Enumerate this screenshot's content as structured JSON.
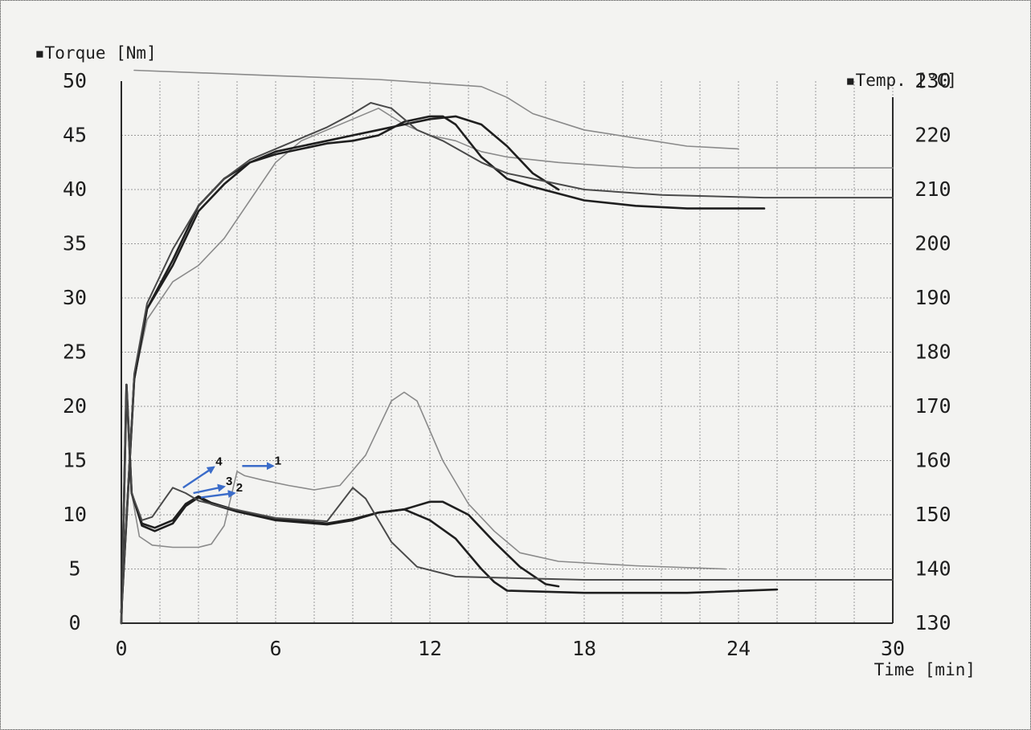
{
  "chart_data": {
    "type": "line",
    "title": "",
    "y_left_label": "▪Torque [Nm]",
    "y_right_label": "▪Temp. [°C]",
    "xlabel": "Time [min]",
    "xlim": [
      0,
      30
    ],
    "ylim_left": [
      0,
      50
    ],
    "ylim_right": [
      130,
      230
    ],
    "x_ticks": [
      "0",
      "6",
      "12",
      "18",
      "24",
      "30"
    ],
    "y_left_ticks": [
      "0",
      "5",
      "10",
      "15",
      "20",
      "25",
      "30",
      "35",
      "40",
      "45",
      "50"
    ],
    "y_right_ticks": [
      "130",
      "140",
      "150",
      "160",
      "170",
      "180",
      "190",
      "200",
      "210",
      "220",
      "230"
    ],
    "grid": true,
    "legend": "none",
    "colors": {
      "dark_curve": "#1f1f1f",
      "medium_curve": "#4a4a4a",
      "light_curve": "#8a8a8a",
      "grid": "#9a9a9a",
      "arrow": "#3b6cc9"
    },
    "series": [
      {
        "name": "1",
        "axis": "torque",
        "shade": "light",
        "points": [
          [
            0,
            0
          ],
          [
            0.2,
            22
          ],
          [
            0.4,
            12
          ],
          [
            0.7,
            8
          ],
          [
            1.2,
            7.2
          ],
          [
            2,
            7
          ],
          [
            3,
            7
          ],
          [
            3.5,
            7.3
          ],
          [
            4,
            9
          ],
          [
            4.3,
            12
          ],
          [
            4.5,
            14
          ],
          [
            4.8,
            13.6
          ],
          [
            5.5,
            13.2
          ],
          [
            6.5,
            12.7
          ],
          [
            7.5,
            12.3
          ],
          [
            8.5,
            12.7
          ],
          [
            9.5,
            15.5
          ],
          [
            10.5,
            20.5
          ],
          [
            11,
            21.3
          ],
          [
            11.5,
            20.5
          ],
          [
            12.5,
            15
          ],
          [
            13.5,
            11
          ],
          [
            14.5,
            8.5
          ],
          [
            15.5,
            6.5
          ],
          [
            17,
            5.7
          ],
          [
            20,
            5.3
          ],
          [
            23.5,
            5
          ]
        ]
      },
      {
        "name": "2",
        "axis": "torque",
        "shade": "dark",
        "points": [
          [
            0,
            0
          ],
          [
            0.2,
            22
          ],
          [
            0.4,
            12
          ],
          [
            0.8,
            9
          ],
          [
            1.3,
            8.5
          ],
          [
            2,
            9.2
          ],
          [
            2.5,
            10.8
          ],
          [
            3,
            11.6
          ],
          [
            3.5,
            11
          ],
          [
            4.5,
            10.3
          ],
          [
            6,
            9.5
          ],
          [
            8,
            9.1
          ],
          [
            9,
            9.5
          ],
          [
            10,
            10.2
          ],
          [
            11,
            10.5
          ],
          [
            12,
            11.2
          ],
          [
            12.5,
            11.2
          ],
          [
            13.5,
            10
          ],
          [
            14.5,
            7.5
          ],
          [
            15.5,
            5.2
          ],
          [
            16.5,
            3.6
          ],
          [
            17,
            3.4
          ]
        ]
      },
      {
        "name": "3",
        "axis": "torque",
        "shade": "dark",
        "points": [
          [
            0,
            0
          ],
          [
            0.2,
            22
          ],
          [
            0.4,
            12
          ],
          [
            0.8,
            9.2
          ],
          [
            1.3,
            8.8
          ],
          [
            2,
            9.5
          ],
          [
            2.5,
            11
          ],
          [
            3,
            11.7
          ],
          [
            3.5,
            11.1
          ],
          [
            4.5,
            10.4
          ],
          [
            6,
            9.6
          ],
          [
            8,
            9.2
          ],
          [
            9,
            9.6
          ],
          [
            10,
            10.2
          ],
          [
            11,
            10.5
          ],
          [
            12,
            9.5
          ],
          [
            13,
            7.8
          ],
          [
            14,
            5
          ],
          [
            14.5,
            3.8
          ],
          [
            15,
            3
          ],
          [
            18,
            2.8
          ],
          [
            22,
            2.8
          ],
          [
            25.5,
            3.1
          ]
        ]
      },
      {
        "name": "4",
        "axis": "torque",
        "shade": "medium",
        "points": [
          [
            0,
            0
          ],
          [
            0.2,
            22
          ],
          [
            0.4,
            12
          ],
          [
            0.8,
            9.5
          ],
          [
            1.2,
            9.8
          ],
          [
            1.7,
            11.5
          ],
          [
            2,
            12.5
          ],
          [
            2.5,
            12
          ],
          [
            3,
            11.3
          ],
          [
            4,
            10.7
          ],
          [
            6,
            9.7
          ],
          [
            8,
            9.4
          ],
          [
            9,
            12.5
          ],
          [
            9.5,
            11.5
          ],
          [
            10.5,
            7.5
          ],
          [
            11.5,
            5.2
          ],
          [
            13,
            4.3
          ],
          [
            18,
            4
          ],
          [
            24,
            4
          ],
          [
            30,
            4
          ]
        ]
      },
      {
        "name": "1",
        "axis": "temp",
        "shade": "light",
        "points": [
          [
            0,
            132
          ],
          [
            0.5,
            175
          ],
          [
            1,
            186
          ],
          [
            2,
            193
          ],
          [
            3,
            196
          ],
          [
            4,
            201
          ],
          [
            5,
            208
          ],
          [
            6,
            215
          ],
          [
            7,
            219
          ],
          [
            8,
            221
          ],
          [
            9,
            223
          ],
          [
            10,
            225
          ],
          [
            11,
            222
          ],
          [
            12,
            220
          ],
          [
            13,
            219
          ],
          [
            14,
            217
          ],
          [
            15,
            216
          ],
          [
            17,
            215
          ],
          [
            20,
            214
          ],
          [
            25,
            214
          ],
          [
            30,
            214
          ]
        ]
      },
      {
        "name": "2",
        "axis": "temp",
        "shade": "dark",
        "points": [
          [
            0,
            132
          ],
          [
            0.5,
            175
          ],
          [
            1,
            188
          ],
          [
            2,
            196
          ],
          [
            3,
            206
          ],
          [
            4,
            211
          ],
          [
            5,
            215
          ],
          [
            6,
            217
          ],
          [
            7,
            218
          ],
          [
            8,
            219
          ],
          [
            9,
            220
          ],
          [
            10,
            221
          ],
          [
            11,
            222
          ],
          [
            12,
            223
          ],
          [
            13,
            223.5
          ],
          [
            14,
            222
          ],
          [
            15,
            218
          ],
          [
            16,
            213
          ],
          [
            17,
            210
          ]
        ]
      },
      {
        "name": "3",
        "axis": "temp",
        "shade": "dark",
        "points": [
          [
            0,
            132
          ],
          [
            0.5,
            175
          ],
          [
            1,
            188
          ],
          [
            2,
            197
          ],
          [
            3,
            207
          ],
          [
            4,
            212
          ],
          [
            5,
            215
          ],
          [
            6,
            216.5
          ],
          [
            7,
            217.5
          ],
          [
            8,
            218.5
          ],
          [
            9,
            219
          ],
          [
            10,
            220
          ],
          [
            11,
            222.5
          ],
          [
            12,
            223.5
          ],
          [
            12.5,
            223.5
          ],
          [
            13,
            222
          ],
          [
            14,
            216
          ],
          [
            15,
            212
          ],
          [
            16,
            210.5
          ],
          [
            18,
            208
          ],
          [
            20,
            207
          ],
          [
            22,
            206.5
          ],
          [
            25,
            206.5
          ]
        ]
      },
      {
        "name": "4",
        "axis": "temp",
        "shade": "medium",
        "points": [
          [
            0,
            132
          ],
          [
            0.5,
            176
          ],
          [
            1,
            189
          ],
          [
            2,
            199
          ],
          [
            3,
            207
          ],
          [
            4,
            212
          ],
          [
            5,
            215.5
          ],
          [
            6,
            217.5
          ],
          [
            7,
            219.5
          ],
          [
            8,
            221.5
          ],
          [
            9,
            224
          ],
          [
            9.7,
            226
          ],
          [
            10.5,
            225
          ],
          [
            11.5,
            221
          ],
          [
            12.5,
            219
          ],
          [
            14,
            215
          ],
          [
            15,
            213
          ],
          [
            16.5,
            211.5
          ],
          [
            18,
            210
          ],
          [
            21,
            209
          ],
          [
            25,
            208.5
          ],
          [
            30,
            208.5
          ]
        ]
      },
      {
        "name": "",
        "axis": "temp",
        "shade": "light",
        "points": [
          [
            0.5,
            232
          ],
          [
            6,
            231
          ],
          [
            10,
            230.3
          ],
          [
            14,
            229
          ],
          [
            15,
            227
          ],
          [
            16,
            224
          ],
          [
            18,
            221
          ],
          [
            20,
            219.5
          ],
          [
            22,
            218
          ],
          [
            24,
            217.5
          ]
        ]
      }
    ],
    "annotations": [
      {
        "label": "1",
        "x": 5.9,
        "torque": 14.5
      },
      {
        "label": "2",
        "x": 4.4,
        "torque": 12.0
      },
      {
        "label": "3",
        "x": 4.0,
        "torque": 12.6
      },
      {
        "label": "4",
        "x": 3.6,
        "torque": 14.4
      }
    ]
  }
}
